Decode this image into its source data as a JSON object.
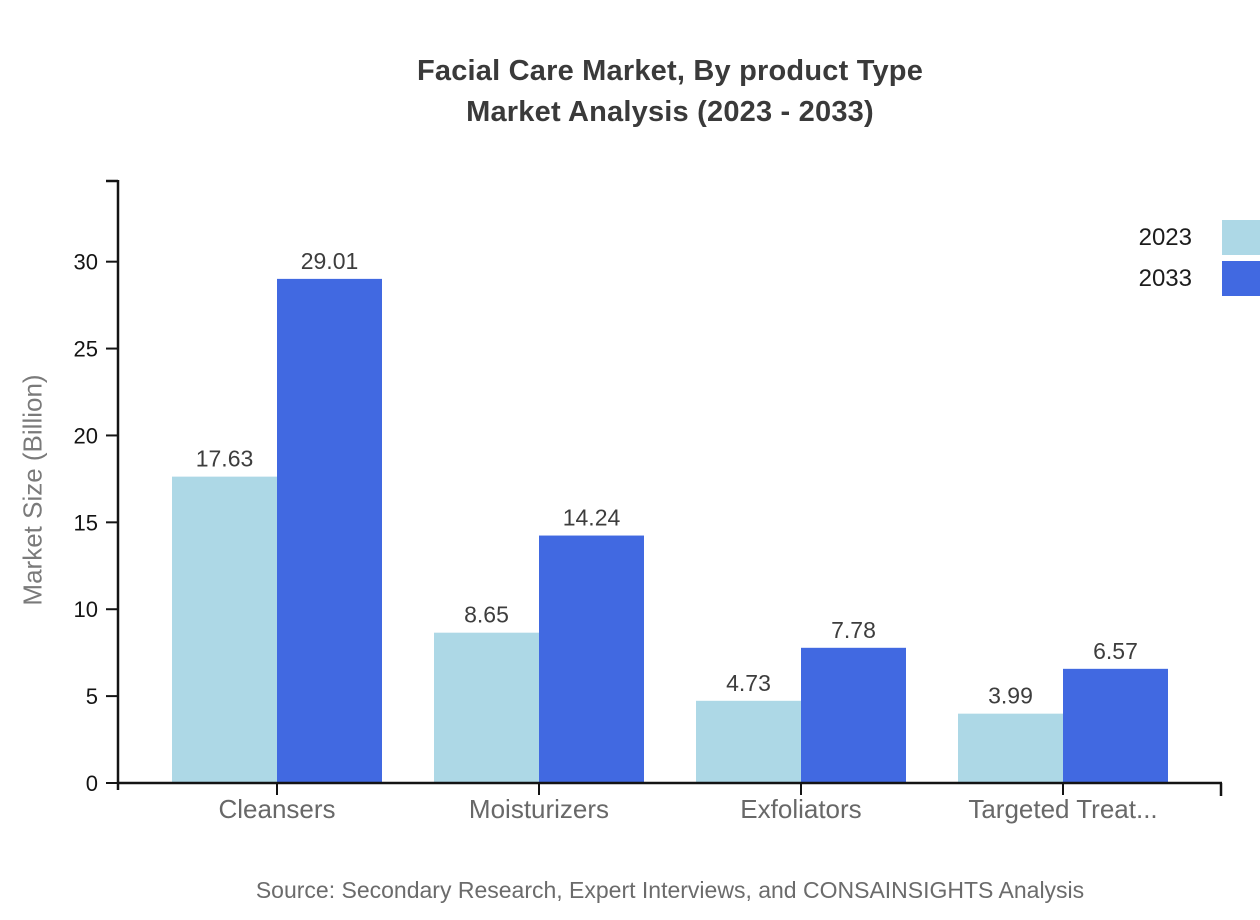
{
  "title": {
    "line1": "Facial Care Market, By product Type",
    "line2": "Market Analysis (2023 - 2033)"
  },
  "y_axis_title": "Market Size (Billion)",
  "source": "Source: Secondary Research, Expert Interviews, and CONSAINSIGHTS Analysis",
  "colors": {
    "series_2023": "#add8e6",
    "series_2033": "#4169e1",
    "axis": "#141414",
    "title_text": "#3a3a3a",
    "value_label": "#3d3d3d",
    "category_label": "#686868",
    "muted_text": "#6b6b6b"
  },
  "chart_data": {
    "type": "bar",
    "title": "Facial Care Market, By product Type Market Analysis (2023 - 2033)",
    "categories": [
      "Cleansers",
      "Moisturizers",
      "Exfoliators",
      "Targeted Treat..."
    ],
    "series": [
      {
        "name": "2023",
        "color": "#add8e6",
        "values": [
          17.63,
          8.65,
          4.73,
          3.99
        ]
      },
      {
        "name": "2033",
        "color": "#4169e1",
        "values": [
          29.01,
          14.24,
          7.78,
          6.57
        ]
      }
    ],
    "xlabel": "",
    "ylabel": "Market Size (Billion)",
    "ylim": [
      0,
      34.7
    ],
    "yticks": [
      0,
      5,
      10,
      15,
      20,
      25,
      30
    ],
    "grid": false,
    "value_labels": true,
    "legend_position": "top-right"
  }
}
